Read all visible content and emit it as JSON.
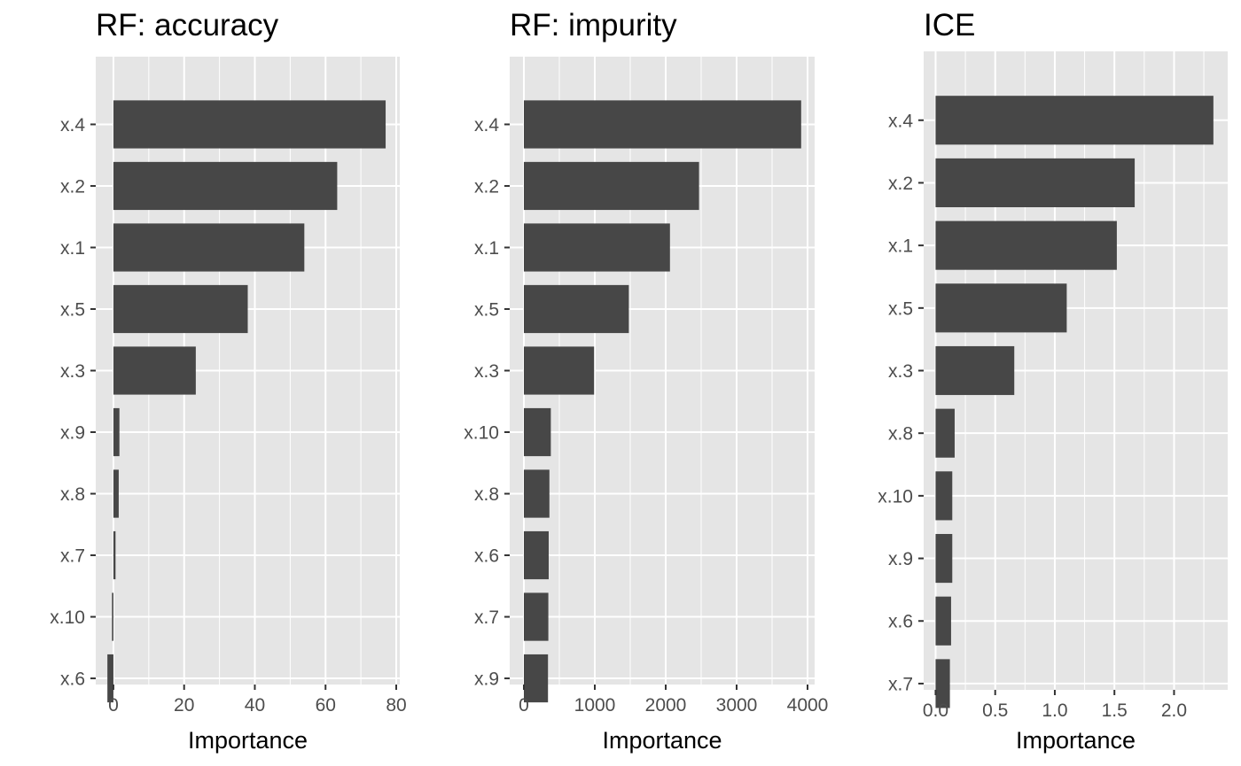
{
  "colors": {
    "panel_background": "#e5e5e5",
    "gridline": "#ffffff",
    "bar_fill": "#474747",
    "tick_text": "#4d4d4d",
    "tick_mark": "#333333",
    "title_text": "#000000"
  },
  "chart_data": [
    {
      "type": "bar",
      "orientation": "horizontal",
      "title": "RF: accuracy",
      "xlabel": "Importance",
      "ylabel": "",
      "categories": [
        "x.4",
        "x.2",
        "x.1",
        "x.5",
        "x.3",
        "x.9",
        "x.8",
        "x.7",
        "x.10",
        "x.6"
      ],
      "values": [
        77,
        63.3,
        54,
        38,
        23.3,
        1.7,
        1.5,
        0.6,
        -0.4,
        -1.7
      ],
      "xlim": [
        -5,
        81
      ],
      "xticks": [
        0,
        20,
        40,
        60,
        80
      ],
      "xtick_labels": [
        "0",
        "20",
        "40",
        "60",
        "80"
      ],
      "grid": true
    },
    {
      "type": "bar",
      "orientation": "horizontal",
      "title": "RF: impurity",
      "xlabel": "Importance",
      "ylabel": "",
      "categories": [
        "x.4",
        "x.2",
        "x.1",
        "x.5",
        "x.3",
        "x.10",
        "x.8",
        "x.6",
        "x.7",
        "x.9"
      ],
      "values": [
        3910,
        2470,
        2060,
        1480,
        990,
        380,
        360,
        350,
        345,
        340
      ],
      "xlim": [
        -200,
        4100
      ],
      "xticks": [
        0,
        1000,
        2000,
        3000,
        4000
      ],
      "xtick_labels": [
        "0",
        "1000",
        "2000",
        "3000",
        "4000"
      ],
      "grid": true
    },
    {
      "type": "bar",
      "orientation": "horizontal",
      "title": "ICE",
      "xlabel": "Importance",
      "ylabel": "",
      "categories": [
        "x.4",
        "x.2",
        "x.1",
        "x.5",
        "x.3",
        "x.8",
        "x.10",
        "x.9",
        "x.6",
        "x.7"
      ],
      "values": [
        2.33,
        1.67,
        1.52,
        1.1,
        0.66,
        0.16,
        0.14,
        0.14,
        0.13,
        0.12
      ],
      "xlim": [
        -0.1,
        2.45
      ],
      "xticks": [
        0,
        0.5,
        1,
        1.5,
        2
      ],
      "xtick_labels": [
        "0.0",
        "0.5",
        "1.0",
        "1.5",
        "2.0"
      ],
      "grid": true
    }
  ]
}
